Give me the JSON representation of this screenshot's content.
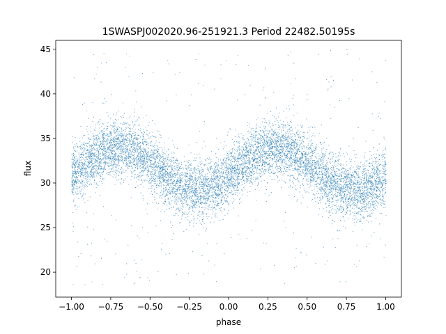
{
  "chart_data": {
    "type": "scatter",
    "title": "1SWASPJ002020.96-251921.3 Period 22482.50195s",
    "xlabel": "phase",
    "ylabel": "flux",
    "xlim": [
      -1.1,
      1.1
    ],
    "ylim": [
      17.2,
      46.0
    ],
    "xticks": [
      -1.0,
      -0.75,
      -0.5,
      -0.25,
      0.0,
      0.25,
      0.5,
      0.75,
      1.0
    ],
    "xtick_labels": [
      "−1.00",
      "−0.75",
      "−0.50",
      "−0.25",
      "0.00",
      "0.25",
      "0.50",
      "0.75",
      "1.00"
    ],
    "yticks": [
      20,
      25,
      30,
      35,
      40,
      45
    ],
    "ytick_labels": [
      "20",
      "25",
      "30",
      "35",
      "40",
      "45"
    ],
    "grid": false,
    "legend": "none",
    "point_color": "#1f77b4",
    "series": [
      {
        "model": "sinusoid",
        "x_range": [
          -1.0,
          1.0
        ],
        "mean_flux": 31.6,
        "amplitude": 2.4,
        "peak_phase": 0.3,
        "cycles_per_unit_phase": 1.0,
        "scatter_sigma": 1.6,
        "outlier_range": [
          18.5,
          45.0
        ],
        "points": [
          {
            "x": -0.98,
            "y": 30.2
          },
          {
            "x": -0.85,
            "y": 32.4
          },
          {
            "x": -0.7,
            "y": 34.0
          },
          {
            "x": -0.55,
            "y": 33.6
          },
          {
            "x": -0.4,
            "y": 31.9
          },
          {
            "x": -0.25,
            "y": 29.9
          },
          {
            "x": -0.15,
            "y": 29.2
          },
          {
            "x": 0.0,
            "y": 30.0
          },
          {
            "x": 0.15,
            "y": 32.1
          },
          {
            "x": 0.3,
            "y": 34.0
          },
          {
            "x": 0.45,
            "y": 33.6
          },
          {
            "x": 0.6,
            "y": 31.9
          },
          {
            "x": 0.75,
            "y": 29.9
          },
          {
            "x": 0.85,
            "y": 29.2
          },
          {
            "x": 1.0,
            "y": 30.0
          }
        ]
      }
    ]
  }
}
